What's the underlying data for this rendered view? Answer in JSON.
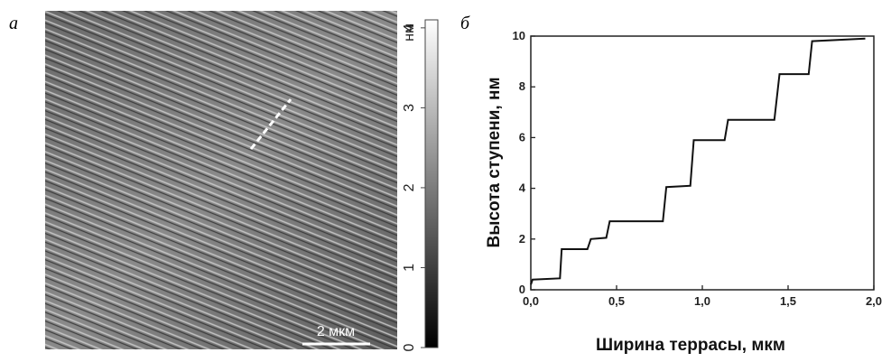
{
  "panel_labels": [
    "а",
    "б"
  ],
  "afm_image": {
    "scale_bar": "2 мкм",
    "colorbar": {
      "unit": "нм",
      "lim": [
        0,
        4.1
      ],
      "ticks": [
        0,
        1,
        2,
        3,
        4
      ]
    }
  },
  "chart_data": {
    "type": "line",
    "x_label": "Ширина террасы, мкм",
    "y_label": "Высота ступени, нм",
    "x": [
      0.0,
      0.01,
      0.17,
      0.18,
      0.33,
      0.35,
      0.44,
      0.46,
      0.77,
      0.79,
      0.93,
      0.95,
      1.13,
      1.15,
      1.42,
      1.45,
      1.62,
      1.64,
      1.95
    ],
    "values": [
      0.2,
      0.4,
      0.45,
      1.6,
      1.6,
      2.0,
      2.05,
      2.7,
      2.7,
      4.05,
      4.1,
      5.9,
      5.9,
      6.7,
      6.7,
      8.5,
      8.5,
      9.8,
      9.9
    ],
    "color": "#111111",
    "xlim": [
      0,
      2
    ],
    "ylim": [
      0,
      10
    ],
    "xticks": [
      {
        "value": 0,
        "label": "0,0"
      },
      {
        "value": 0.5,
        "label": "0,5"
      },
      {
        "value": 1,
        "label": "1,0"
      },
      {
        "value": 1.5,
        "label": "1,5"
      },
      {
        "value": 2,
        "label": "2,0"
      }
    ],
    "yticks": [
      0,
      2,
      4,
      6,
      8,
      10
    ]
  }
}
